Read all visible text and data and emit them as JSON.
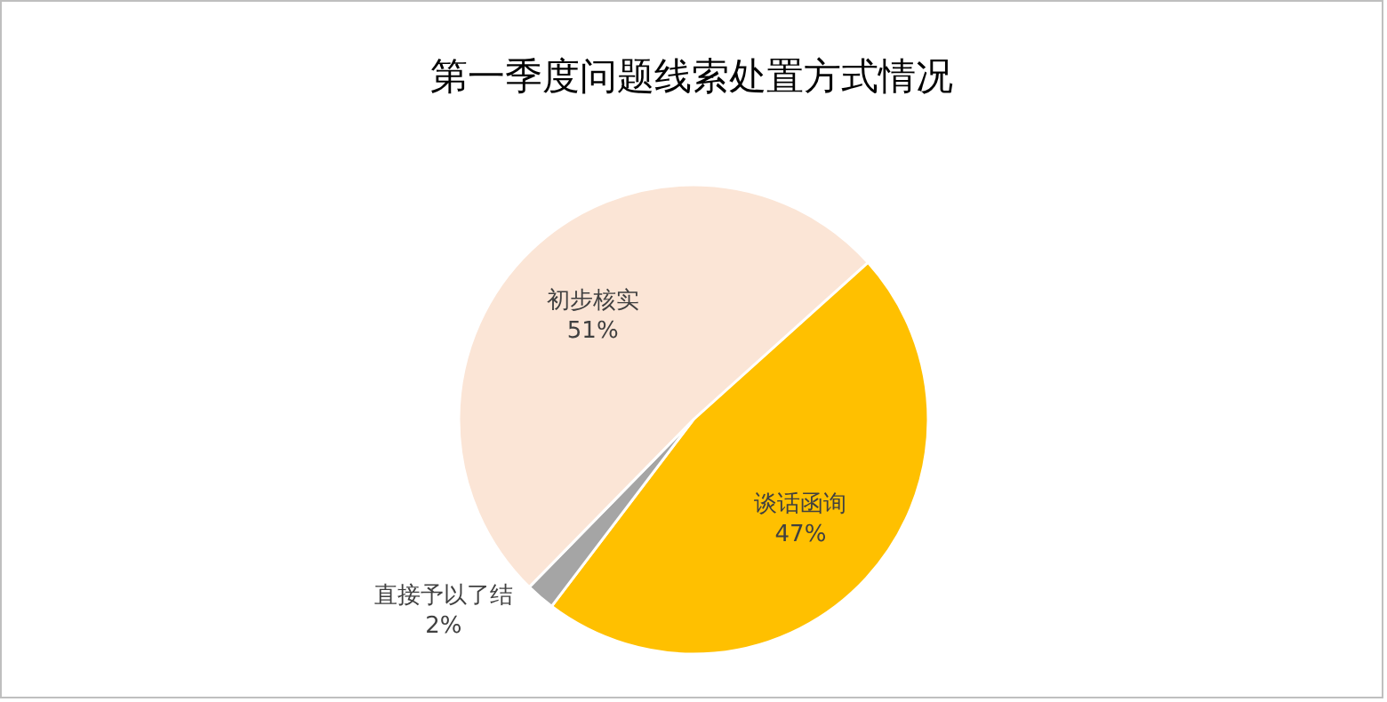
{
  "chart_data": {
    "type": "pie",
    "title": "第一季度问题线索处置方式情况",
    "categories": [
      "谈话函询",
      "直接予以了结",
      "初步核实"
    ],
    "values": [
      47,
      2,
      51
    ],
    "value_labels": [
      "47%",
      "2%",
      "51%"
    ],
    "colors": [
      "#ffc000",
      "#a5a5a5",
      "#fbe5d6"
    ],
    "legend": false
  }
}
